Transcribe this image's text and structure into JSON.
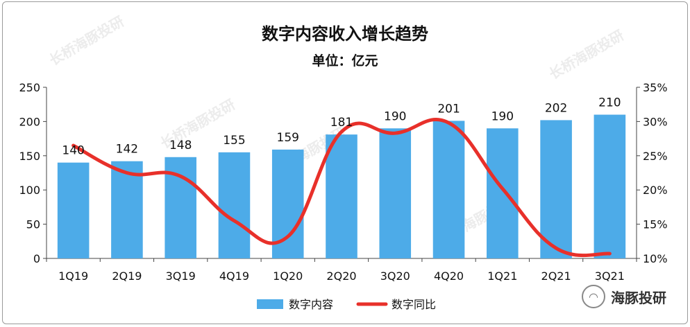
{
  "chart_data": {
    "type": "bar",
    "title": "数字内容收入增长趋势",
    "subtitle": "单位：亿元",
    "categories": [
      "1Q19",
      "2Q19",
      "3Q19",
      "4Q19",
      "1Q20",
      "2Q20",
      "3Q20",
      "4Q20",
      "1Q21",
      "2Q21",
      "3Q21"
    ],
    "series": [
      {
        "name": "数字内容",
        "kind": "bar",
        "axis": "left",
        "color": "#4dabe8",
        "values": [
          140,
          142,
          148,
          155,
          159,
          181,
          190,
          201,
          190,
          202,
          210
        ]
      },
      {
        "name": "数字同比",
        "kind": "line",
        "axis": "right",
        "color": "#e8302a",
        "values": [
          26.5,
          22.5,
          22.0,
          15.5,
          13.2,
          28.5,
          28.3,
          29.8,
          20.2,
          11.5,
          10.7
        ]
      }
    ],
    "ylim_left": [
      0,
      250
    ],
    "ylim_right": [
      10,
      35
    ],
    "yticks_left": [
      "0",
      "50",
      "100",
      "150",
      "200",
      "250"
    ],
    "yticks_right": [
      "10%",
      "15%",
      "20%",
      "25%",
      "30%",
      "35%"
    ],
    "legend_position": "bottom",
    "grid": false
  },
  "watermark": {
    "icon": "wechat-icon",
    "icon_glyph": "◠",
    "text": "海豚投研"
  },
  "background_watermark": "长桥海豚投研"
}
